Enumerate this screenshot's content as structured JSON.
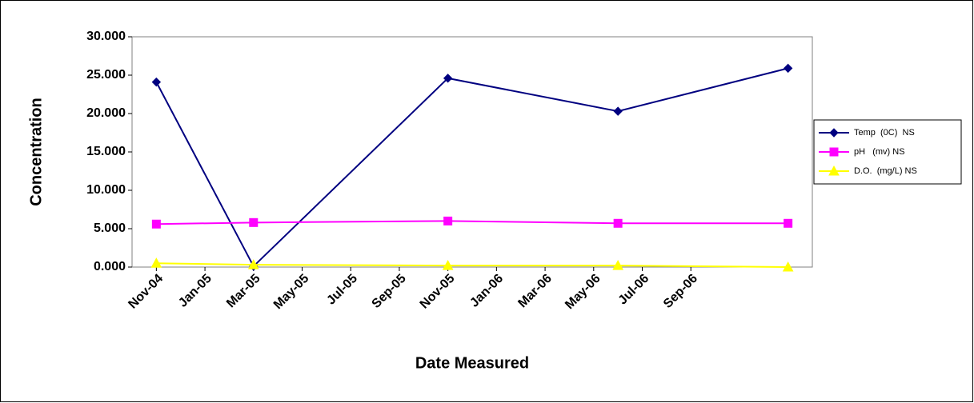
{
  "chart_data": {
    "type": "line",
    "x_label": "Date Measured",
    "y_label": "Concentration",
    "x": [
      "Nov-04",
      "Mar-05",
      "Nov-05",
      "Jun-06",
      "Jan-07"
    ],
    "xlim": [
      "Oct-04",
      "Feb-07"
    ],
    "xticks": [
      "Nov-04",
      "Jan-05",
      "Mar-05",
      "May-05",
      "Jul-05",
      "Sep-05",
      "Nov-05",
      "Jan-06",
      "Mar-06",
      "May-06",
      "Jul-06",
      "Sep-06"
    ],
    "ylim": [
      0,
      30
    ],
    "yticks": [
      {
        "value": 0,
        "label": "0.000"
      },
      {
        "value": 5,
        "label": "5.000"
      },
      {
        "value": 10,
        "label": "10.000"
      },
      {
        "value": 15,
        "label": "15.000"
      },
      {
        "value": 20,
        "label": "20.000"
      },
      {
        "value": 25,
        "label": "25.000"
      },
      {
        "value": 30,
        "label": "30.000"
      }
    ],
    "grid": false,
    "legend": "right",
    "series": [
      {
        "name": "Temp  (0C)  NS",
        "color": "#000080",
        "marker": "diamond",
        "values": [
          24.1,
          0.1,
          24.6,
          20.3,
          25.9
        ]
      },
      {
        "name": "pH   (mv) NS",
        "color": "#ff00ff",
        "marker": "square",
        "values": [
          5.6,
          5.8,
          6.0,
          5.7,
          5.7
        ]
      },
      {
        "name": "D.O.  (mg/L) NS",
        "color": "#ffff00",
        "marker": "triangle",
        "values": [
          0.5,
          0.3,
          0.2,
          0.2,
          0.0
        ]
      }
    ]
  }
}
